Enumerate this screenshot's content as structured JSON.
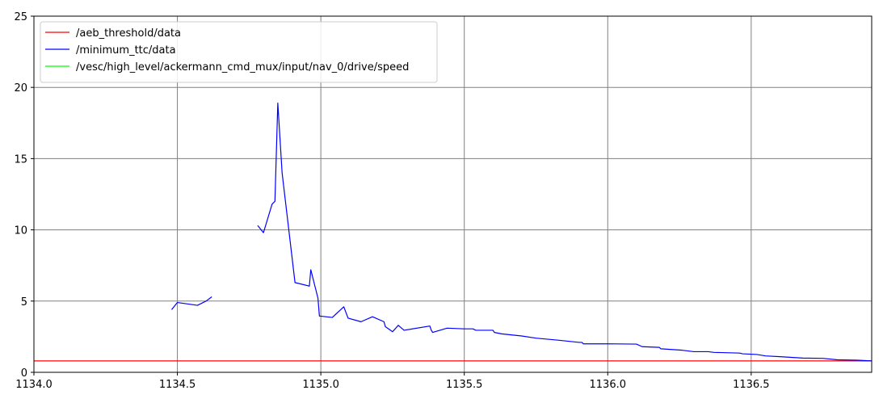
{
  "chart_data": {
    "type": "line",
    "title": "",
    "xlabel": "",
    "ylabel": "",
    "xlim": [
      1134.0,
      1136.92
    ],
    "ylim": [
      0,
      25
    ],
    "grid": true,
    "legend_position": "top-left",
    "x_ticks": [
      1134.0,
      1134.5,
      1135.0,
      1135.5,
      1136.0,
      1136.5
    ],
    "x_tick_labels": [
      "1134.0",
      "1134.5",
      "1135.0",
      "1135.5",
      "1136.0",
      "1136.5"
    ],
    "y_ticks": [
      0,
      5,
      10,
      15,
      20,
      25
    ],
    "y_tick_labels": [
      "0",
      "5",
      "10",
      "15",
      "20",
      "25"
    ],
    "series": [
      {
        "name": "/aeb_threshold/data",
        "color": "#ff0000",
        "segments": [
          [
            [
              1134.0,
              0.8
            ],
            [
              1136.92,
              0.8
            ]
          ]
        ]
      },
      {
        "name": "/minimum_ttc/data",
        "color": "#0000ff",
        "segments": [
          [
            [
              1134.48,
              4.4
            ],
            [
              1134.5,
              4.9
            ],
            [
              1134.57,
              4.7
            ],
            [
              1134.6,
              5.0
            ],
            [
              1134.62,
              5.3
            ]
          ],
          [
            [
              1134.78,
              10.3
            ],
            [
              1134.8,
              9.8
            ],
            [
              1134.83,
              11.8
            ],
            [
              1134.84,
              12.0
            ],
            [
              1134.85,
              18.9
            ],
            [
              1134.865,
              14.0
            ],
            [
              1134.91,
              6.3
            ],
            [
              1134.96,
              6.05
            ],
            [
              1134.965,
              7.2
            ],
            [
              1134.99,
              5.2
            ],
            [
              1134.995,
              3.95
            ],
            [
              1135.04,
              3.85
            ],
            [
              1135.08,
              4.6
            ],
            [
              1135.095,
              3.8
            ],
            [
              1135.14,
              3.55
            ],
            [
              1135.18,
              3.9
            ],
            [
              1135.22,
              3.55
            ],
            [
              1135.225,
              3.2
            ],
            [
              1135.25,
              2.85
            ],
            [
              1135.27,
              3.3
            ],
            [
              1135.29,
              2.95
            ],
            [
              1135.38,
              3.25
            ],
            [
              1135.385,
              2.95
            ],
            [
              1135.39,
              2.8
            ],
            [
              1135.44,
              3.1
            ],
            [
              1135.5,
              3.05
            ],
            [
              1135.53,
              3.05
            ],
            [
              1135.54,
              2.95
            ],
            [
              1135.6,
              2.95
            ],
            [
              1135.605,
              2.8
            ],
            [
              1135.63,
              2.7
            ],
            [
              1135.7,
              2.55
            ],
            [
              1135.75,
              2.4
            ],
            [
              1135.83,
              2.25
            ],
            [
              1135.9,
              2.1
            ],
            [
              1135.91,
              2.1
            ],
            [
              1135.915,
              2.0
            ],
            [
              1136.0,
              2.0
            ],
            [
              1136.1,
              1.98
            ],
            [
              1136.12,
              1.8
            ],
            [
              1136.18,
              1.75
            ],
            [
              1136.185,
              1.65
            ],
            [
              1136.26,
              1.55
            ],
            [
              1136.3,
              1.45
            ],
            [
              1136.35,
              1.45
            ],
            [
              1136.37,
              1.4
            ],
            [
              1136.46,
              1.35
            ],
            [
              1136.47,
              1.3
            ],
            [
              1136.52,
              1.25
            ],
            [
              1136.55,
              1.15
            ],
            [
              1136.6,
              1.1
            ],
            [
              1136.68,
              1.0
            ],
            [
              1136.75,
              0.98
            ],
            [
              1136.8,
              0.88
            ],
            [
              1136.87,
              0.85
            ],
            [
              1136.92,
              0.8
            ]
          ]
        ]
      },
      {
        "name": "/vesc/high_level/ackermann_cmd_mux/input/nav_0/drive/speed",
        "color": "#00ff00",
        "segments": []
      }
    ]
  }
}
